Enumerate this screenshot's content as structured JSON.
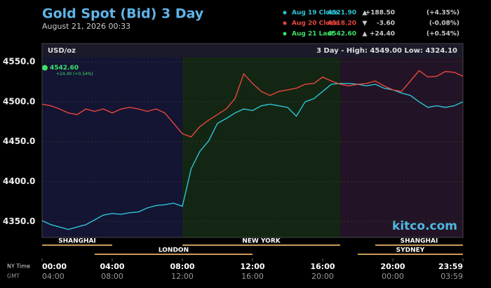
{
  "chart_data": {
    "type": "line",
    "title": "Gold Spot (Bid) 3 Day",
    "subtitle": "August 21, 2026 00:33",
    "y_unit": "USD/oz",
    "range_text": "3 Day - High: 4549.00  Low: 4324.10",
    "watermark": "kitco.com",
    "time_row_labels": [
      "NY Time",
      "GMT"
    ],
    "legend": [
      {
        "name": "Aug 19 Close",
        "color": "#2ec4d6",
        "close": "4521.90",
        "direction": "▲",
        "change": "+188.50",
        "pct": "(+4.35%)"
      },
      {
        "name": "Aug 20 Close",
        "color": "#e8463c",
        "close": "4518.20",
        "direction": "▼",
        "change": "-3.60",
        "pct": "(-0.08%)"
      },
      {
        "name": "Aug 21 Last",
        "color": "#3ee06a",
        "close": "4542.60",
        "direction": "▲",
        "change": "+24.40",
        "pct": "(+0.54%)"
      }
    ],
    "x": [
      0,
      0.5,
      1,
      1.5,
      2,
      2.5,
      3,
      3.5,
      4,
      4.5,
      5,
      5.5,
      6,
      6.5,
      7,
      7.5,
      8,
      8.5,
      9,
      9.5,
      10,
      10.5,
      11,
      11.5,
      12,
      12.5,
      13,
      13.5,
      14,
      14.5,
      15,
      15.5,
      16,
      16.5,
      17,
      17.5,
      18,
      18.5,
      19,
      19.5,
      20,
      20.5,
      21,
      21.5,
      22,
      22.5,
      23,
      23.5,
      24
    ],
    "series": [
      {
        "name": "Aug 19 Close",
        "color": "#2ec4d6",
        "values": [
          4351,
          4346,
          4343,
          4340,
          4343,
          4346,
          4352,
          4358,
          4360,
          4359,
          4361,
          4362,
          4367,
          4370,
          4371,
          4373,
          4369,
          4416,
          4438,
          4451,
          4473,
          4479,
          4486,
          4491,
          4489,
          4495,
          4497,
          4495,
          4493,
          4482,
          4500,
          4504,
          4513,
          4522,
          4523,
          4523,
          4522,
          4520,
          4522,
          4517,
          4515,
          4511,
          4508,
          4500,
          4493,
          4495,
          4493,
          4495,
          4500
        ]
      },
      {
        "name": "Aug 20 Close",
        "color": "#e8463c",
        "values": [
          4497,
          4495,
          4491,
          4486,
          4484,
          4491,
          4488,
          4491,
          4486,
          4491,
          4493,
          4491,
          4488,
          4491,
          4486,
          4473,
          4460,
          4456,
          4469,
          4477,
          4484,
          4491,
          4504,
          4535,
          4523,
          4513,
          4508,
          4513,
          4515,
          4517,
          4522,
          4523,
          4531,
          4526,
          4522,
          4520,
          4522,
          4523,
          4526,
          4520,
          4515,
          4513,
          4526,
          4539,
          4531,
          4532,
          4538,
          4537,
          4532
        ]
      },
      {
        "name": "Aug 21 Last",
        "color": "#3ee06a",
        "x": [
          0
        ],
        "values": [
          4542.6
        ],
        "value_labels": [
          "4542.60"
        ],
        "change_label": "+24.40 (+0.54%)"
      }
    ],
    "xlim": [
      0,
      24
    ],
    "xticks": [
      {
        "value": 0,
        "label": "00:00"
      },
      {
        "value": 4,
        "label": "04:00"
      },
      {
        "value": 8,
        "label": "08:00"
      },
      {
        "value": 12,
        "label": "12:00"
      },
      {
        "value": 16,
        "label": "16:00"
      },
      {
        "value": 20,
        "label": "20:00"
      },
      {
        "value": 24,
        "label": "23:59"
      }
    ],
    "gmt_labels": [
      "04:00",
      "08:00",
      "12:00",
      "16:00",
      "20:00",
      "00:00",
      "03:59"
    ],
    "ylim": [
      4330,
      4573
    ],
    "yticks": [
      {
        "value": 4350,
        "label": "4350.0"
      },
      {
        "value": 4400,
        "label": "4400.0"
      },
      {
        "value": 4450,
        "label": "4450.0"
      },
      {
        "value": 4500,
        "label": "4500.0"
      },
      {
        "value": 4550,
        "label": "4550.0"
      }
    ],
    "sessions_top": [
      {
        "name": "SHANGHAI",
        "start": 0,
        "end": 4
      },
      {
        "name": "NEW YORK",
        "start": 8,
        "end": 17
      },
      {
        "name": "SHANGHAI",
        "start": 19,
        "end": 24
      }
    ],
    "sessions_bottom": [
      {
        "name": "LONDON",
        "start": 3,
        "end": 12
      },
      {
        "name": "SYDNEY",
        "start": 18,
        "end": 24
      }
    ]
  }
}
